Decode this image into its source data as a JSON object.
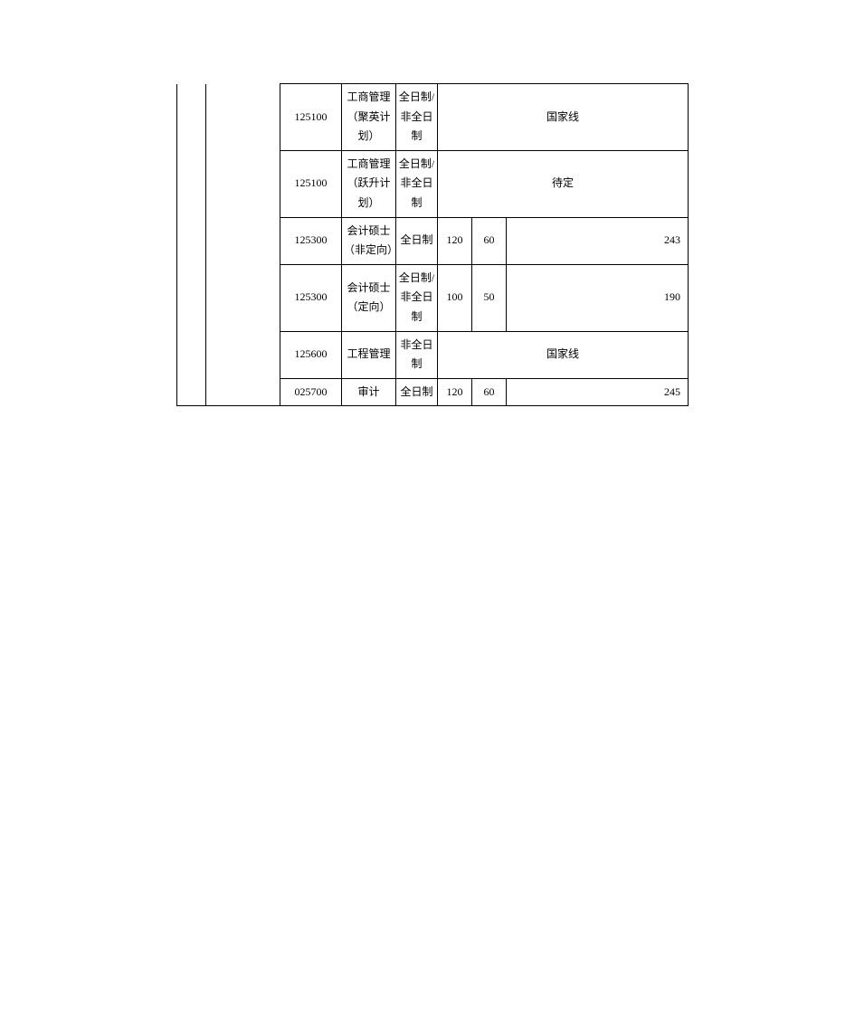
{
  "table": {
    "rows": [
      {
        "code": "125100",
        "name": "工商管理（聚英计划）",
        "mode": "全日制/非全日制",
        "merged": "国家线"
      },
      {
        "code": "125100",
        "name": "工商管理（跃升计划）",
        "mode": "全日制/非全日制",
        "merged": "待定"
      },
      {
        "code": "125300",
        "name": "会计硕士（非定向）",
        "mode": "全日制",
        "n1": "120",
        "n2": "60",
        "n3": "243"
      },
      {
        "code": "125300",
        "name": "会计硕士（定向）",
        "mode": "全日制/非全日制",
        "n1": "100",
        "n2": "50",
        "n3": "190"
      },
      {
        "code": "125600",
        "name": "工程管理",
        "mode": "非全日制",
        "merged": "国家线"
      },
      {
        "code": "025700",
        "name": "审计",
        "mode": "全日制",
        "n1": "120",
        "n2": "60",
        "n3": "245"
      }
    ]
  }
}
